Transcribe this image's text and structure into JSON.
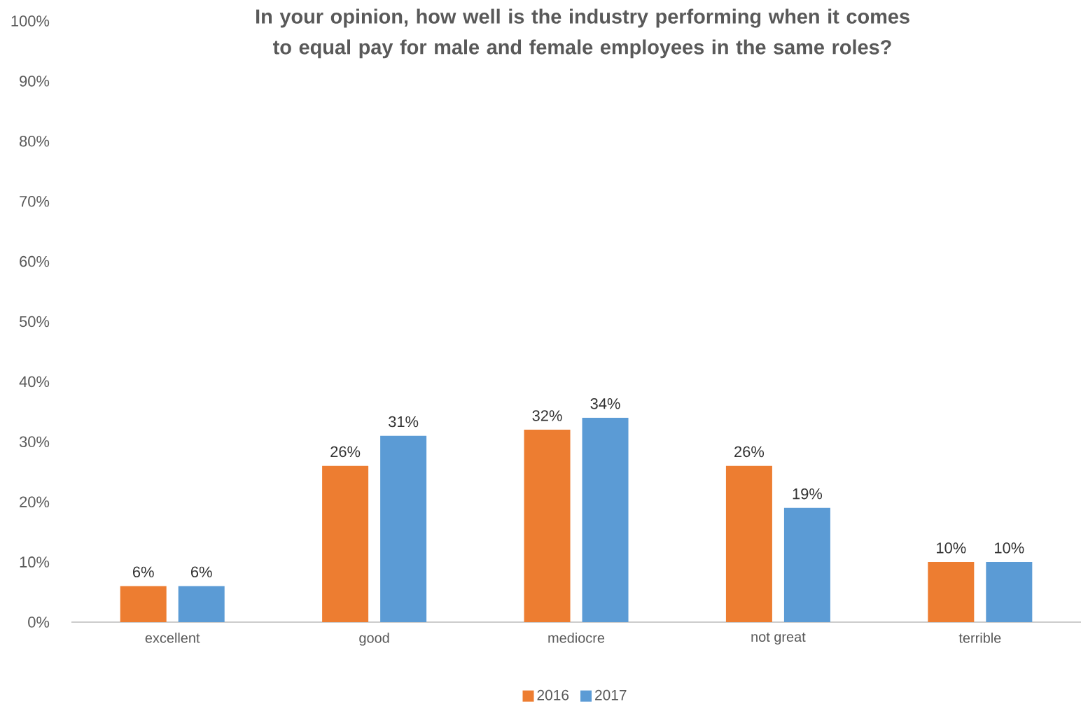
{
  "chart_data": {
    "type": "bar",
    "title": "In your opinion, how well is the industry performing when it comes to equal pay for male and female employees in the same roles?",
    "categories": [
      "excellent",
      "good",
      "mediocre",
      "not great",
      "terrible"
    ],
    "series": [
      {
        "name": "2016",
        "color": "#ed7d31",
        "values": [
          6,
          26,
          32,
          26,
          10
        ],
        "value_labels": [
          "6%",
          "26%",
          "32%",
          "26%",
          "10%"
        ]
      },
      {
        "name": "2017",
        "color": "#5b9bd5",
        "values": [
          6,
          31,
          34,
          19,
          10
        ],
        "value_labels": [
          "6%",
          "31%",
          "34%",
          "19%",
          "10%"
        ]
      }
    ],
    "ylim": [
      0,
      100
    ],
    "yticks": [
      {
        "value": 0,
        "label": "0%"
      },
      {
        "value": 10,
        "label": "10%"
      },
      {
        "value": 20,
        "label": "20%"
      },
      {
        "value": 30,
        "label": "30%"
      },
      {
        "value": 40,
        "label": "40%"
      },
      {
        "value": 50,
        "label": "50%"
      },
      {
        "value": 60,
        "label": "60%"
      },
      {
        "value": 70,
        "label": "70%"
      },
      {
        "value": 80,
        "label": "80%"
      },
      {
        "value": 90,
        "label": "90%"
      },
      {
        "value": 100,
        "label": "100%"
      }
    ],
    "legend": "bottom"
  }
}
